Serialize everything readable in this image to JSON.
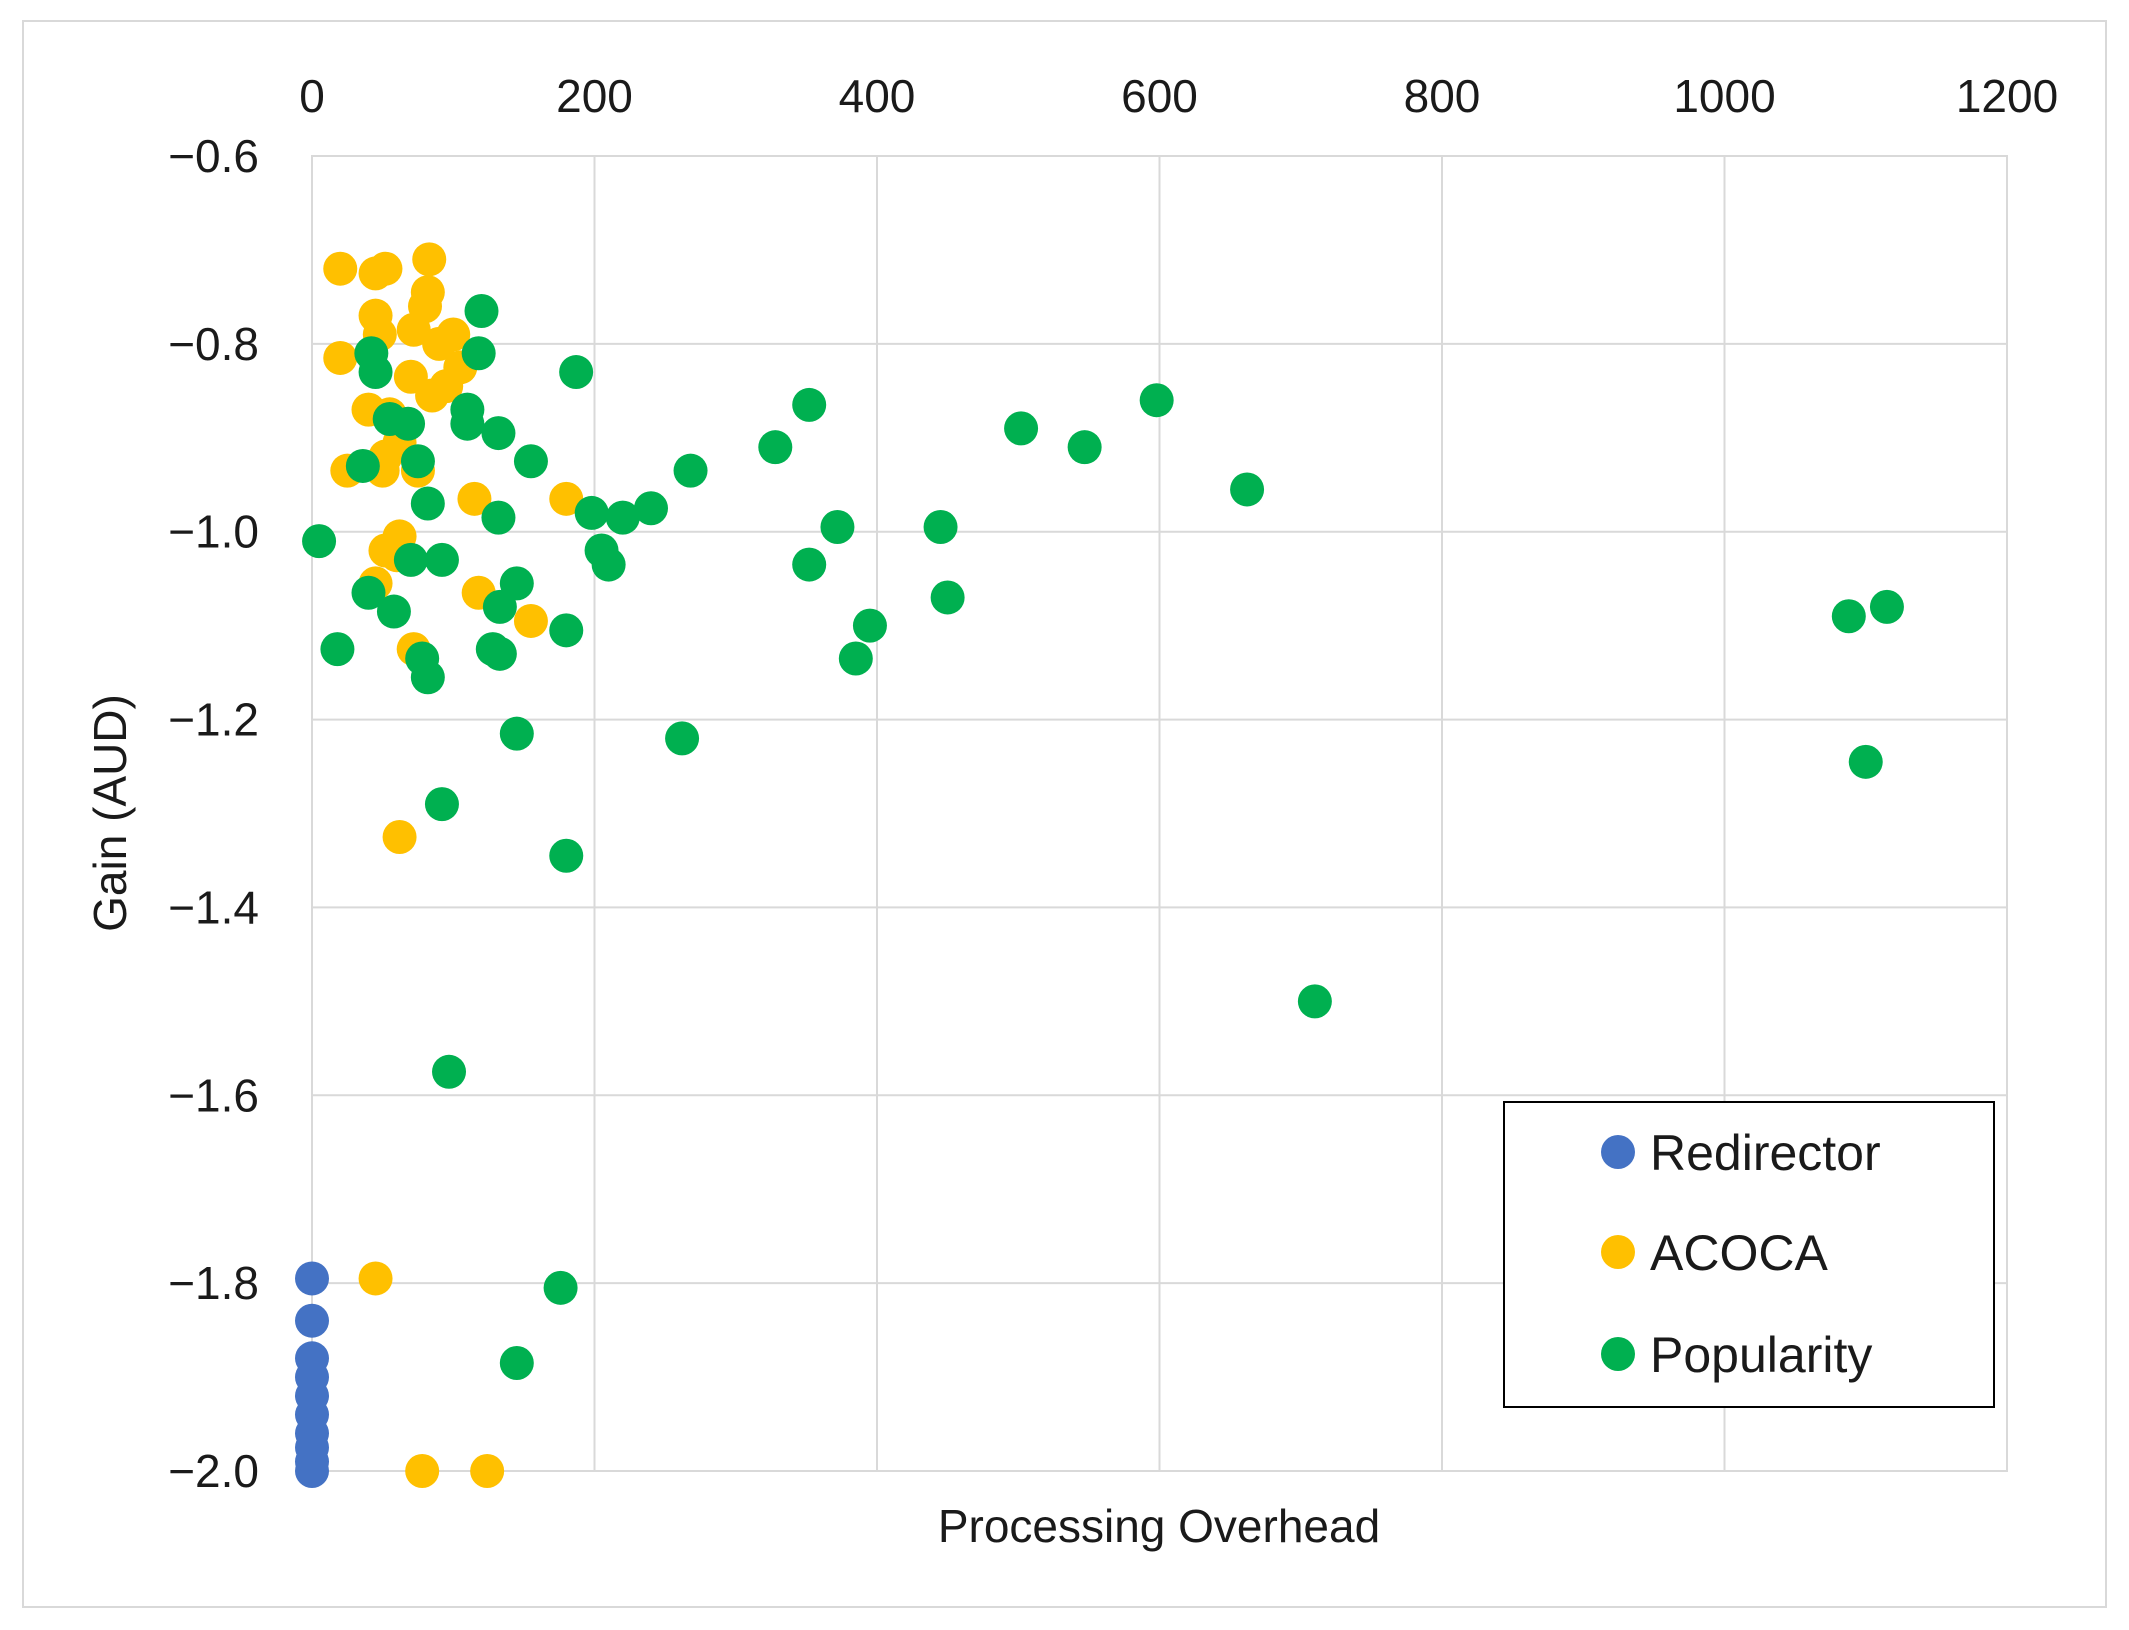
{
  "chart_data": {
    "type": "scatter",
    "xlabel": "Processing Overhead",
    "ylabel": "Gain (AUD)",
    "xlim": [
      0,
      1200
    ],
    "ylim": [
      -2.0,
      -0.6
    ],
    "x_ticks": [
      "0",
      "200",
      "400",
      "600",
      "800",
      "1000",
      "1200"
    ],
    "y_ticks": [
      "−0.6",
      "−0.8",
      "−1.0",
      "−1.2",
      "−1.4",
      "−1.6",
      "−1.8",
      "−2.0"
    ],
    "x_tick_values": [
      0,
      200,
      400,
      600,
      800,
      1000,
      1200
    ],
    "y_tick_values": [
      -0.6,
      -0.8,
      -1.0,
      -1.2,
      -1.4,
      -1.6,
      -1.8,
      -2.0
    ],
    "grid": true,
    "x_axis_position": "top",
    "legend_position": "bottom-right",
    "series": [
      {
        "name": "Redirector",
        "color": "#4472c4",
        "points": [
          [
            0,
            -1.795
          ],
          [
            0,
            -1.84
          ],
          [
            0,
            -1.88
          ],
          [
            0,
            -1.9
          ],
          [
            0,
            -1.92
          ],
          [
            0,
            -1.94
          ],
          [
            0,
            -1.96
          ],
          [
            0,
            -1.975
          ],
          [
            0,
            -1.99
          ],
          [
            0,
            -2.0
          ]
        ]
      },
      {
        "name": "ACOCA",
        "color": "#ffc000",
        "points": [
          [
            20,
            -0.72
          ],
          [
            45,
            -0.725
          ],
          [
            52,
            -0.72
          ],
          [
            83,
            -0.71
          ],
          [
            82,
            -0.745
          ],
          [
            80,
            -0.76
          ],
          [
            45,
            -0.77
          ],
          [
            48,
            -0.79
          ],
          [
            72,
            -0.785
          ],
          [
            90,
            -0.8
          ],
          [
            100,
            -0.79
          ],
          [
            20,
            -0.815
          ],
          [
            105,
            -0.825
          ],
          [
            70,
            -0.835
          ],
          [
            95,
            -0.845
          ],
          [
            85,
            -0.855
          ],
          [
            40,
            -0.87
          ],
          [
            55,
            -0.875
          ],
          [
            62,
            -0.905
          ],
          [
            52,
            -0.92
          ],
          [
            25,
            -0.935
          ],
          [
            50,
            -0.935
          ],
          [
            75,
            -0.935
          ],
          [
            115,
            -0.965
          ],
          [
            180,
            -0.965
          ],
          [
            62,
            -1.005
          ],
          [
            52,
            -1.02
          ],
          [
            60,
            -1.025
          ],
          [
            45,
            -1.055
          ],
          [
            118,
            -1.065
          ],
          [
            155,
            -1.095
          ],
          [
            72,
            -1.125
          ],
          [
            62,
            -1.325
          ],
          [
            45,
            -1.795
          ],
          [
            78,
            -2.0
          ],
          [
            124,
            -2.0
          ]
        ]
      },
      {
        "name": "Popularity",
        "color": "#00b050",
        "points": [
          [
            120,
            -0.765
          ],
          [
            42,
            -0.81
          ],
          [
            118,
            -0.81
          ],
          [
            45,
            -0.83
          ],
          [
            187,
            -0.83
          ],
          [
            352,
            -0.865
          ],
          [
            598,
            -0.86
          ],
          [
            110,
            -0.87
          ],
          [
            55,
            -0.88
          ],
          [
            68,
            -0.885
          ],
          [
            110,
            -0.885
          ],
          [
            132,
            -0.895
          ],
          [
            502,
            -0.89
          ],
          [
            328,
            -0.91
          ],
          [
            547,
            -0.91
          ],
          [
            75,
            -0.925
          ],
          [
            155,
            -0.925
          ],
          [
            36,
            -0.93
          ],
          [
            268,
            -0.935
          ],
          [
            662,
            -0.955
          ],
          [
            82,
            -0.97
          ],
          [
            240,
            -0.975
          ],
          [
            198,
            -0.98
          ],
          [
            220,
            -0.985
          ],
          [
            132,
            -0.985
          ],
          [
            372,
            -0.995
          ],
          [
            445,
            -0.995
          ],
          [
            5,
            -1.01
          ],
          [
            205,
            -1.02
          ],
          [
            70,
            -1.03
          ],
          [
            92,
            -1.03
          ],
          [
            210,
            -1.035
          ],
          [
            352,
            -1.035
          ],
          [
            145,
            -1.055
          ],
          [
            40,
            -1.065
          ],
          [
            133,
            -1.08
          ],
          [
            450,
            -1.07
          ],
          [
            58,
            -1.085
          ],
          [
            395,
            -1.1
          ],
          [
            180,
            -1.105
          ],
          [
            1088,
            -1.09
          ],
          [
            1115,
            -1.08
          ],
          [
            18,
            -1.125
          ],
          [
            128,
            -1.125
          ],
          [
            133,
            -1.13
          ],
          [
            78,
            -1.135
          ],
          [
            385,
            -1.135
          ],
          [
            82,
            -1.155
          ],
          [
            145,
            -1.215
          ],
          [
            262,
            -1.22
          ],
          [
            1100,
            -1.245
          ],
          [
            92,
            -1.29
          ],
          [
            180,
            -1.345
          ],
          [
            710,
            -1.5
          ],
          [
            97,
            -1.575
          ],
          [
            176,
            -1.805
          ],
          [
            145,
            -1.885
          ]
        ]
      }
    ]
  }
}
